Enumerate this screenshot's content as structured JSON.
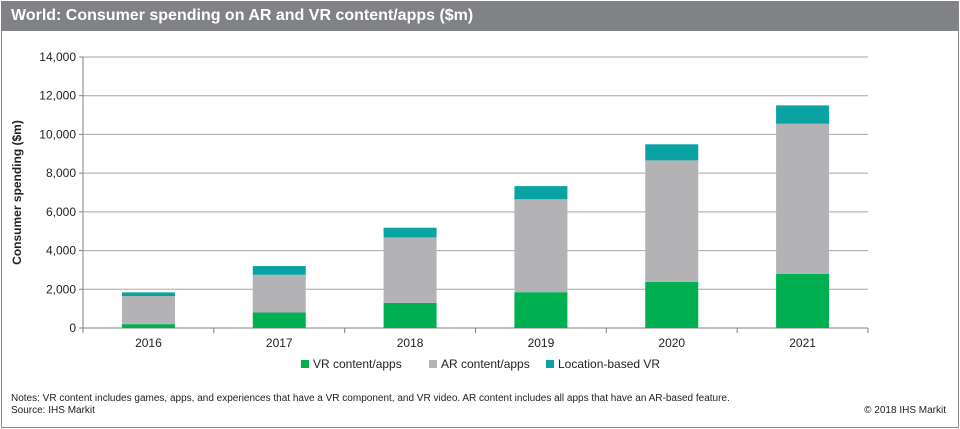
{
  "title": "World: Consumer spending on AR and VR content/apps ($m)",
  "notes": "Notes: VR content includes games, apps, and experiences that have a VR component, and VR video. AR content includes all apps that have an AR-based feature.",
  "source": "Source: IHS Markit",
  "copyright": "© 2018 IHS Markit",
  "chart_data": {
    "type": "bar",
    "stacked": true,
    "categories": [
      "2016",
      "2017",
      "2018",
      "2019",
      "2020",
      "2021"
    ],
    "series": [
      {
        "name": "VR content/apps",
        "color": "#00b050",
        "values": [
          200,
          800,
          1300,
          1850,
          2380,
          2800
        ]
      },
      {
        "name": "AR content/apps",
        "color": "#b3b3b5",
        "values": [
          1450,
          1950,
          3380,
          4800,
          6280,
          7750
        ]
      },
      {
        "name": "Location-based VR",
        "color": "#0aa3a3",
        "values": [
          190,
          450,
          500,
          680,
          830,
          950
        ]
      }
    ],
    "ylabel": "Consumer spending ($m)",
    "xlabel": "",
    "ylim": [
      0,
      14000
    ],
    "yticks": [
      0,
      2000,
      4000,
      6000,
      8000,
      10000,
      12000,
      14000
    ],
    "ytick_labels": [
      "0",
      "2,000",
      "4,000",
      "6,000",
      "8,000",
      "10,000",
      "12,000",
      "14,000"
    ],
    "grid": true,
    "legend_position": "bottom"
  }
}
